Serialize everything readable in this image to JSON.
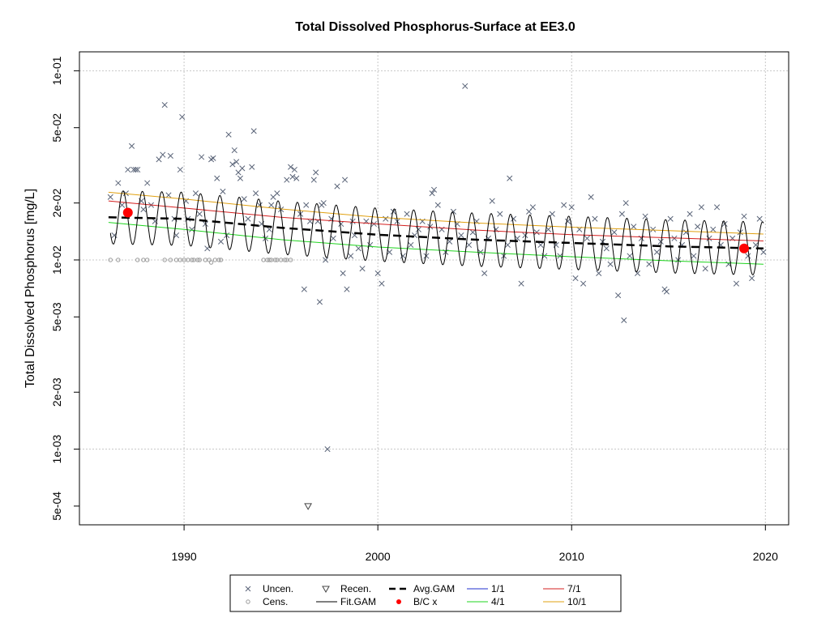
{
  "chart_data": {
    "type": "scatter",
    "title": "Total Dissolved Phosphorus-Surface at EE3.0",
    "xlabel": "",
    "ylabel": "Total Dissolved Phosphorus [mg/L]",
    "y_scale": "log",
    "xlim": [
      1984.6,
      2021.2
    ],
    "ylim": [
      0.0003981,
      0.1259
    ],
    "x_ticks": [
      1990,
      2000,
      2010,
      2020
    ],
    "x_tick_labels": [
      "1990",
      "2000",
      "2010",
      "2020"
    ],
    "y_ticks": [
      0.0005,
      0.001,
      0.002,
      0.005,
      0.01,
      0.02,
      0.05,
      0.1
    ],
    "y_tick_labels": [
      "5e-04",
      "1e-03",
      "2e-03",
      "5e-03",
      "1e-02",
      "2e-02",
      "5e-02",
      "1e-01"
    ],
    "grid": true,
    "legend_position": "bottom-center",
    "legend": [
      {
        "label": "Uncen.",
        "marker": "x",
        "color": "#5a6478"
      },
      {
        "label": "Cens.",
        "marker": "circle",
        "color": "#9a9a9a"
      },
      {
        "label": "Recen.",
        "marker": "triangle-down",
        "color": "#444444"
      },
      {
        "label": "Fit.GAM",
        "marker": "line",
        "color": "#000000"
      },
      {
        "label": "Avg.GAM",
        "marker": "dashed-line",
        "color": "#000000"
      },
      {
        "label": "B/C x",
        "marker": "dot",
        "color": "#ff0000"
      },
      {
        "label": "1/1",
        "marker": "line",
        "color": "#1f2fcf"
      },
      {
        "label": "4/1",
        "marker": "line",
        "color": "#1fd41f"
      },
      {
        "label": "7/1",
        "marker": "line",
        "color": "#d41f1f"
      },
      {
        "label": "10/1",
        "marker": "line",
        "color": "#e0a010"
      }
    ],
    "uncensored": [
      [
        1986.2,
        0.0215
      ],
      [
        1986.4,
        0.0135
      ],
      [
        1986.6,
        0.0255
      ],
      [
        1986.8,
        0.0195
      ],
      [
        1987.0,
        0.0225
      ],
      [
        1987.1,
        0.03
      ],
      [
        1987.3,
        0.04
      ],
      [
        1987.4,
        0.03
      ],
      [
        1987.5,
        0.03
      ],
      [
        1987.6,
        0.03
      ],
      [
        1987.8,
        0.0205
      ],
      [
        1987.9,
        0.0185
      ],
      [
        1988.1,
        0.0255
      ],
      [
        1988.3,
        0.0195
      ],
      [
        1988.5,
        0.016
      ],
      [
        1988.7,
        0.034
      ],
      [
        1988.9,
        0.036
      ],
      [
        1989.0,
        0.066
      ],
      [
        1989.2,
        0.022
      ],
      [
        1989.3,
        0.0355
      ],
      [
        1989.5,
        0.0165
      ],
      [
        1989.6,
        0.0135
      ],
      [
        1989.8,
        0.03
      ],
      [
        1989.9,
        0.057
      ],
      [
        1990.1,
        0.0205
      ],
      [
        1990.2,
        0.0165
      ],
      [
        1990.4,
        0.0145
      ],
      [
        1990.6,
        0.0225
      ],
      [
        1990.8,
        0.0175
      ],
      [
        1990.9,
        0.035
      ],
      [
        1991.1,
        0.0155
      ],
      [
        1991.2,
        0.0115
      ],
      [
        1991.4,
        0.034
      ],
      [
        1991.5,
        0.0345
      ],
      [
        1991.7,
        0.027
      ],
      [
        1991.9,
        0.0125
      ],
      [
        1992.0,
        0.023
      ],
      [
        1992.2,
        0.0135
      ],
      [
        1992.3,
        0.046
      ],
      [
        1992.5,
        0.032
      ],
      [
        1992.6,
        0.038
      ],
      [
        1992.7,
        0.033
      ],
      [
        1992.8,
        0.029
      ],
      [
        1992.9,
        0.027
      ],
      [
        1993.0,
        0.0305
      ],
      [
        1993.1,
        0.021
      ],
      [
        1993.3,
        0.0165
      ],
      [
        1993.5,
        0.031
      ],
      [
        1993.6,
        0.048
      ],
      [
        1993.7,
        0.0225
      ],
      [
        1993.9,
        0.0195
      ],
      [
        1994.0,
        0.0155
      ],
      [
        1994.2,
        0.013
      ],
      [
        1994.4,
        0.0145
      ],
      [
        1994.5,
        0.0195
      ],
      [
        1994.6,
        0.0215
      ],
      [
        1994.8,
        0.0225
      ],
      [
        1995.0,
        0.0185
      ],
      [
        1995.3,
        0.0265
      ],
      [
        1995.5,
        0.031
      ],
      [
        1995.6,
        0.0275
      ],
      [
        1995.7,
        0.03
      ],
      [
        1995.8,
        0.027
      ],
      [
        1996.0,
        0.0175
      ],
      [
        1996.2,
        0.007
      ],
      [
        1996.3,
        0.0195
      ],
      [
        1996.5,
        0.016
      ],
      [
        1996.7,
        0.0265
      ],
      [
        1996.8,
        0.029
      ],
      [
        1996.9,
        0.016
      ],
      [
        1997.0,
        0.006
      ],
      [
        1997.1,
        0.0195
      ],
      [
        1997.2,
        0.02
      ],
      [
        1997.3,
        0.01
      ],
      [
        1997.4,
        0.001
      ],
      [
        1997.6,
        0.0165
      ],
      [
        1997.7,
        0.013
      ],
      [
        1997.9,
        0.0245
      ],
      [
        1998.1,
        0.0155
      ],
      [
        1998.2,
        0.0085
      ],
      [
        1998.3,
        0.0265
      ],
      [
        1998.4,
        0.007
      ],
      [
        1998.6,
        0.0105
      ],
      [
        1998.7,
        0.016
      ],
      [
        1998.8,
        0.0135
      ],
      [
        1999.0,
        0.0115
      ],
      [
        1999.2,
        0.009
      ],
      [
        1999.4,
        0.016
      ],
      [
        1999.6,
        0.012
      ],
      [
        1999.8,
        0.0155
      ],
      [
        2000.0,
        0.0085
      ],
      [
        2000.2,
        0.0075
      ],
      [
        2000.4,
        0.0165
      ],
      [
        2000.6,
        0.011
      ],
      [
        2000.8,
        0.018
      ],
      [
        2001.0,
        0.016
      ],
      [
        2001.3,
        0.0105
      ],
      [
        2001.5,
        0.0175
      ],
      [
        2001.7,
        0.012
      ],
      [
        2001.9,
        0.0135
      ],
      [
        2002.1,
        0.0145
      ],
      [
        2002.3,
        0.016
      ],
      [
        2002.5,
        0.0105
      ],
      [
        2002.7,
        0.015
      ],
      [
        2002.8,
        0.0225
      ],
      [
        2002.9,
        0.0235
      ],
      [
        2003.1,
        0.0195
      ],
      [
        2003.3,
        0.0145
      ],
      [
        2003.5,
        0.011
      ],
      [
        2003.7,
        0.0125
      ],
      [
        2003.9,
        0.018
      ],
      [
        2004.1,
        0.0155
      ],
      [
        2004.3,
        0.0135
      ],
      [
        2004.5,
        0.083
      ],
      [
        2004.7,
        0.012
      ],
      [
        2004.9,
        0.014
      ],
      [
        2005.1,
        0.016
      ],
      [
        2005.3,
        0.011
      ],
      [
        2005.5,
        0.0085
      ],
      [
        2005.7,
        0.013
      ],
      [
        2005.9,
        0.0205
      ],
      [
        2006.1,
        0.0145
      ],
      [
        2006.3,
        0.0175
      ],
      [
        2006.5,
        0.0105
      ],
      [
        2006.7,
        0.012
      ],
      [
        2006.8,
        0.027
      ],
      [
        2007.0,
        0.0165
      ],
      [
        2007.2,
        0.013
      ],
      [
        2007.4,
        0.0075
      ],
      [
        2007.6,
        0.0135
      ],
      [
        2007.8,
        0.018
      ],
      [
        2008.0,
        0.019
      ],
      [
        2008.2,
        0.014
      ],
      [
        2008.4,
        0.012
      ],
      [
        2008.6,
        0.0105
      ],
      [
        2008.8,
        0.0145
      ],
      [
        2009.0,
        0.0175
      ],
      [
        2009.2,
        0.012
      ],
      [
        2009.4,
        0.0105
      ],
      [
        2009.6,
        0.0195
      ],
      [
        2009.8,
        0.016
      ],
      [
        2010.0,
        0.019
      ],
      [
        2010.2,
        0.008
      ],
      [
        2010.4,
        0.0145
      ],
      [
        2010.6,
        0.0075
      ],
      [
        2010.8,
        0.013
      ],
      [
        2011.0,
        0.0215
      ],
      [
        2011.2,
        0.0165
      ],
      [
        2011.4,
        0.0085
      ],
      [
        2011.6,
        0.0125
      ],
      [
        2011.8,
        0.0115
      ],
      [
        2012.0,
        0.0095
      ],
      [
        2012.2,
        0.014
      ],
      [
        2012.4,
        0.0065
      ],
      [
        2012.6,
        0.0175
      ],
      [
        2012.7,
        0.0048
      ],
      [
        2012.8,
        0.02
      ],
      [
        2013.0,
        0.0105
      ],
      [
        2013.2,
        0.015
      ],
      [
        2013.4,
        0.0085
      ],
      [
        2013.6,
        0.013
      ],
      [
        2013.8,
        0.017
      ],
      [
        2014.0,
        0.0095
      ],
      [
        2014.2,
        0.0145
      ],
      [
        2014.4,
        0.011
      ],
      [
        2014.6,
        0.0125
      ],
      [
        2014.8,
        0.007
      ],
      [
        2014.9,
        0.0068
      ],
      [
        2015.1,
        0.0165
      ],
      [
        2015.3,
        0.013
      ],
      [
        2015.5,
        0.01
      ],
      [
        2015.7,
        0.012
      ],
      [
        2015.9,
        0.014
      ],
      [
        2016.1,
        0.0175
      ],
      [
        2016.3,
        0.0105
      ],
      [
        2016.5,
        0.015
      ],
      [
        2016.7,
        0.019
      ],
      [
        2016.9,
        0.009
      ],
      [
        2017.1,
        0.013
      ],
      [
        2017.3,
        0.0145
      ],
      [
        2017.5,
        0.019
      ],
      [
        2017.7,
        0.012
      ],
      [
        2017.9,
        0.0155
      ],
      [
        2018.1,
        0.0095
      ],
      [
        2018.3,
        0.013
      ],
      [
        2018.5,
        0.0075
      ],
      [
        2018.7,
        0.014
      ],
      [
        2018.9,
        0.017
      ],
      [
        2019.1,
        0.0105
      ],
      [
        2019.3,
        0.008
      ],
      [
        2019.5,
        0.012
      ],
      [
        2019.7,
        0.0165
      ],
      [
        2019.9,
        0.011
      ]
    ],
    "censored": [
      [
        1986.2,
        0.01
      ],
      [
        1986.6,
        0.01
      ],
      [
        1987.6,
        0.01
      ],
      [
        1987.9,
        0.01
      ],
      [
        1988.1,
        0.01
      ],
      [
        1989.0,
        0.01
      ],
      [
        1989.3,
        0.01
      ],
      [
        1989.6,
        0.01
      ],
      [
        1989.8,
        0.01
      ],
      [
        1990.0,
        0.01
      ],
      [
        1990.2,
        0.01
      ],
      [
        1990.4,
        0.01
      ],
      [
        1990.5,
        0.01
      ],
      [
        1990.7,
        0.01
      ],
      [
        1990.8,
        0.01
      ],
      [
        1991.1,
        0.01
      ],
      [
        1991.3,
        0.01
      ],
      [
        1991.4,
        0.0097
      ],
      [
        1991.6,
        0.01
      ],
      [
        1991.8,
        0.01
      ],
      [
        1991.9,
        0.01
      ],
      [
        1994.1,
        0.01
      ],
      [
        1994.3,
        0.01
      ],
      [
        1994.4,
        0.01
      ],
      [
        1994.5,
        0.01
      ],
      [
        1994.7,
        0.01
      ],
      [
        1994.8,
        0.01
      ],
      [
        1995.0,
        0.01
      ],
      [
        1995.2,
        0.01
      ],
      [
        1995.3,
        0.01
      ],
      [
        1995.5,
        0.01
      ]
    ],
    "recensored": [
      [
        1996.4,
        0.0005
      ]
    ],
    "bc_points": [
      [
        1987.1,
        0.0178
      ],
      [
        2018.9,
        0.0115
      ]
    ],
    "avg_gam": [
      [
        1986.1,
        0.0168
      ],
      [
        1990,
        0.0165
      ],
      [
        1995,
        0.0148
      ],
      [
        2000,
        0.0136
      ],
      [
        2005,
        0.0128
      ],
      [
        2010,
        0.0123
      ],
      [
        2015,
        0.0118
      ],
      [
        2019.9,
        0.0115
      ]
    ],
    "fit_gam": {
      "start": 1986.2,
      "end": 2019.9,
      "amplitude": 0.18,
      "phase": 0.4
    },
    "line_4_1": [
      [
        1986.1,
        0.0158
      ],
      [
        1990,
        0.0145
      ],
      [
        1995,
        0.0128
      ],
      [
        2000,
        0.0117
      ],
      [
        2005,
        0.011
      ],
      [
        2010,
        0.0104
      ],
      [
        2015,
        0.0099
      ],
      [
        2019.9,
        0.0095
      ]
    ],
    "line_7_1": [
      [
        1986.1,
        0.0205
      ],
      [
        1990,
        0.0188
      ],
      [
        1995,
        0.0168
      ],
      [
        2000,
        0.0155
      ],
      [
        2005,
        0.0144
      ],
      [
        2010,
        0.0136
      ],
      [
        2015,
        0.0131
      ],
      [
        2019.9,
        0.0126
      ]
    ],
    "line_10_1": [
      [
        1986.1,
        0.0228
      ],
      [
        1990,
        0.021
      ],
      [
        1995,
        0.0186
      ],
      [
        2000,
        0.0168
      ],
      [
        2005,
        0.0157
      ],
      [
        2010,
        0.0149
      ],
      [
        2015,
        0.0143
      ],
      [
        2019.9,
        0.0137
      ]
    ]
  }
}
